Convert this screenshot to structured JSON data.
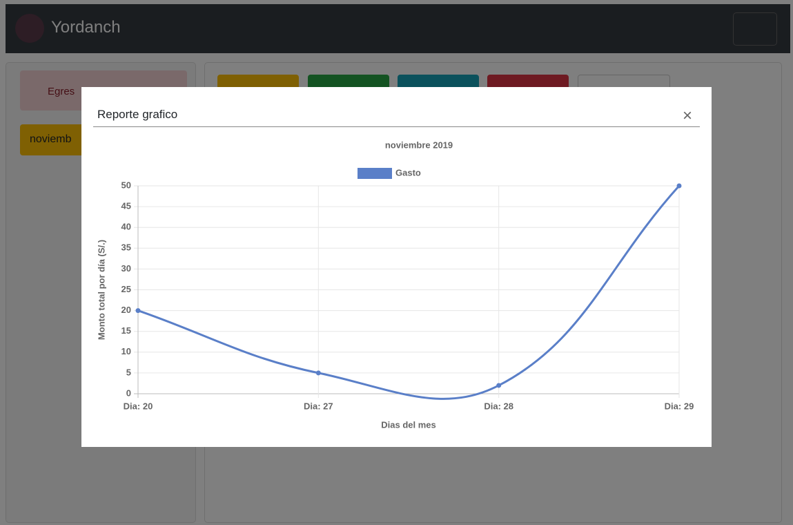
{
  "navbar": {
    "brand": "Yordanch"
  },
  "sidebar": {
    "buttons": [
      "Egres",
      "noviemb"
    ]
  },
  "modal": {
    "title": "Reporte grafico",
    "close": "×"
  },
  "chart_data": {
    "type": "line",
    "title": "noviembre 2019",
    "categories": [
      "Dia: 20",
      "Dia: 27",
      "Dia: 28",
      "Dia: 29"
    ],
    "series": [
      {
        "name": "Gasto",
        "color": "#5a7fc8",
        "values": [
          20,
          5,
          2,
          50
        ]
      }
    ],
    "x_label": "Dias del mes",
    "y_label": "Monto total por día (S/.)",
    "ylim": [
      0,
      50
    ],
    "yticks": [
      0,
      5,
      10,
      15,
      20,
      25,
      30,
      35,
      40,
      45,
      50
    ],
    "grid": true,
    "legend": "top"
  }
}
